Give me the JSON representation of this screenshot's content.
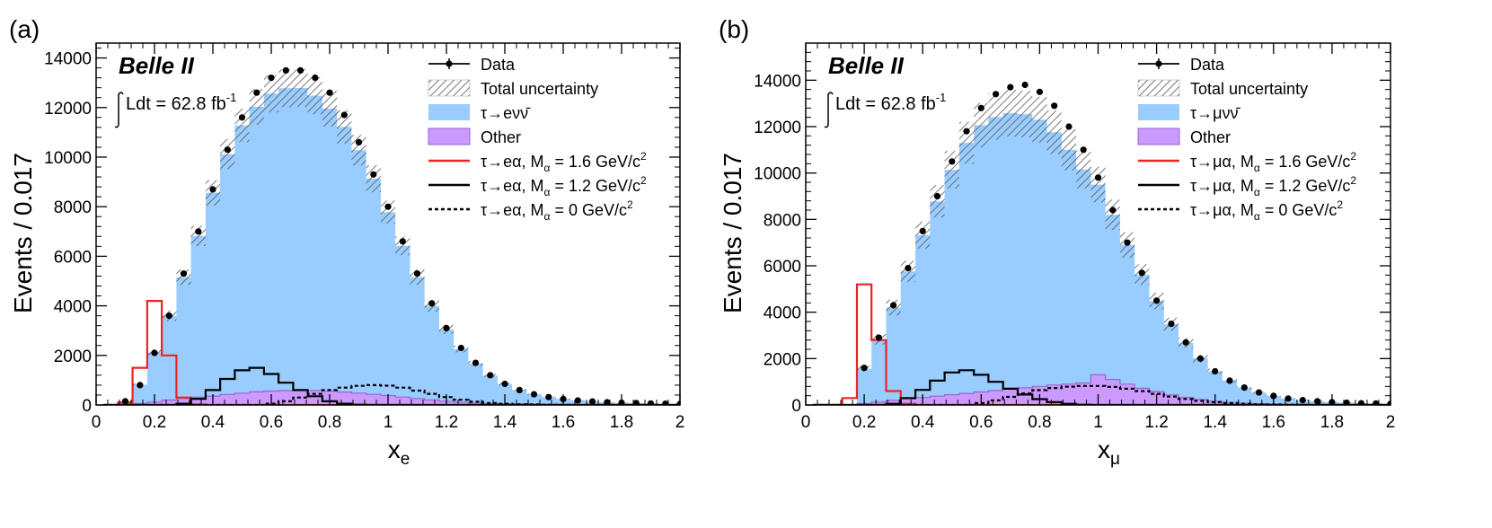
{
  "chart_data": [
    {
      "type": "histogram",
      "panel_label": "(a)",
      "experiment_label": "Belle II",
      "luminosity": {
        "prefix": "Ldt = 62.8 fb",
        "sup": "-1"
      },
      "xlabel": {
        "main": "x",
        "sub": "e"
      },
      "ylabel": "Events / 0.017",
      "xlim": [
        0,
        2
      ],
      "ylim": [
        0,
        14600
      ],
      "xticks": [
        0,
        0.2,
        0.4,
        0.6,
        0.8,
        1,
        1.2,
        1.4,
        1.6,
        1.8,
        2
      ],
      "xticklabels": [
        "0",
        "0.2",
        "0.4",
        "0.6",
        "0.8",
        "1",
        "1.2",
        "1.4",
        "1.6",
        "1.8",
        "2"
      ],
      "yticks": [
        0,
        2000,
        4000,
        6000,
        8000,
        10000,
        12000,
        14000
      ],
      "yticklabels": [
        "0",
        "2000",
        "4000",
        "6000",
        "8000",
        "10000",
        "12000",
        "14000"
      ],
      "x": [
        0.05,
        0.1,
        0.15,
        0.2,
        0.25,
        0.3,
        0.35,
        0.4,
        0.45,
        0.5,
        0.55,
        0.6,
        0.65,
        0.7,
        0.75,
        0.8,
        0.85,
        0.9,
        0.95,
        1.0,
        1.05,
        1.1,
        1.15,
        1.2,
        1.25,
        1.3,
        1.35,
        1.4,
        1.45,
        1.5,
        1.55,
        1.6,
        1.65,
        1.7,
        1.75,
        1.8,
        1.85,
        1.9,
        1.95,
        2.0
      ],
      "series": [
        {
          "name": "Data",
          "kind": "points",
          "values": [
            0,
            150,
            800,
            2100,
            3600,
            5300,
            7000,
            8700,
            10300,
            11600,
            12600,
            13200,
            13500,
            13500,
            13200,
            12600,
            11700,
            10600,
            9300,
            8000,
            6600,
            5300,
            4100,
            3100,
            2300,
            1700,
            1200,
            850,
            600,
            430,
            320,
            240,
            180,
            140,
            110,
            90,
            75,
            60,
            50,
            40
          ]
        },
        {
          "name": "Total uncertainty",
          "kind": "band",
          "fraction": 0.06
        },
        {
          "name": "τ→eνν̄",
          "kind": "stack",
          "values": [
            0,
            130,
            760,
            2000,
            3400,
            4900,
            6500,
            8200,
            9700,
            10800,
            11500,
            12000,
            12200,
            12200,
            11900,
            11400,
            10700,
            9800,
            8700,
            7400,
            6100,
            4900,
            3800,
            2900,
            2150,
            1600,
            1130,
            800,
            570,
            410,
            305,
            230,
            175,
            135,
            105,
            85,
            70,
            57,
            47,
            38
          ]
        },
        {
          "name": "Other",
          "kind": "stack",
          "values": [
            0,
            20,
            60,
            120,
            200,
            260,
            320,
            360,
            420,
            480,
            530,
            560,
            580,
            590,
            580,
            560,
            520,
            480,
            430,
            380,
            320,
            260,
            200,
            150,
            110,
            80,
            60,
            45,
            35,
            25,
            18,
            12,
            8,
            6,
            4,
            3,
            2,
            2,
            1,
            1
          ]
        },
        {
          "name": "τ→eα, M",
          "sub": "α",
          "suffix": " = 1.6 GeV/c",
          "sup": "2",
          "kind": "line",
          "style": "solid",
          "color": "#ee2222",
          "values": [
            0,
            100,
            1500,
            4200,
            2000,
            300,
            20,
            0,
            0,
            0,
            0,
            0,
            0,
            0,
            0,
            0,
            0,
            0,
            0,
            0,
            0,
            0,
            0,
            0,
            0,
            0,
            0,
            0,
            0,
            0,
            0,
            0,
            0,
            0,
            0,
            0,
            0,
            0,
            0,
            0
          ]
        },
        {
          "name": "τ→eα, M",
          "sub": "α",
          "suffix": " = 1.2 GeV/c",
          "sup": "2",
          "kind": "line",
          "style": "solid",
          "color": "#000000",
          "values": [
            0,
            0,
            0,
            0,
            0,
            50,
            250,
            600,
            1050,
            1400,
            1500,
            1250,
            900,
            600,
            350,
            150,
            50,
            10,
            0,
            0,
            0,
            0,
            0,
            0,
            0,
            0,
            0,
            0,
            0,
            0,
            0,
            0,
            0,
            0,
            0,
            0,
            0,
            0,
            0,
            0
          ]
        },
        {
          "name": "τ→eα, M",
          "sub": "α",
          "suffix": " = 0 GeV/c",
          "sup": "2",
          "kind": "line",
          "style": "dashed",
          "color": "#000000",
          "values": [
            0,
            0,
            0,
            0,
            0,
            0,
            0,
            0,
            0,
            0,
            0,
            50,
            150,
            300,
            450,
            600,
            700,
            770,
            800,
            780,
            700,
            580,
            450,
            320,
            210,
            130,
            80,
            50,
            30,
            20,
            10,
            5,
            0,
            0,
            0,
            0,
            0,
            0,
            0,
            0
          ]
        }
      ],
      "colors": {
        "signal": "#99ccff",
        "other": "#cc99ff",
        "other_line": "#9966cc",
        "band": "#555555"
      },
      "legend_position": "top-right"
    },
    {
      "type": "histogram",
      "panel_label": "(b)",
      "experiment_label": "Belle II",
      "luminosity": {
        "prefix": "Ldt = 62.8 fb",
        "sup": "-1"
      },
      "xlabel": {
        "main": "x",
        "sub": "μ"
      },
      "ylabel": "Events / 0.017",
      "xlim": [
        0,
        2
      ],
      "ylim": [
        0,
        15600
      ],
      "xticks": [
        0,
        0.2,
        0.4,
        0.6,
        0.8,
        1,
        1.2,
        1.4,
        1.6,
        1.8,
        2
      ],
      "xticklabels": [
        "0",
        "0.2",
        "0.4",
        "0.6",
        "0.8",
        "1",
        "1.2",
        "1.4",
        "1.6",
        "1.8",
        "2"
      ],
      "yticks": [
        0,
        2000,
        4000,
        6000,
        8000,
        10000,
        12000,
        14000
      ],
      "yticklabels": [
        "0",
        "2000",
        "4000",
        "6000",
        "8000",
        "10000",
        "12000",
        "14000"
      ],
      "x": [
        0.05,
        0.1,
        0.15,
        0.2,
        0.25,
        0.3,
        0.35,
        0.4,
        0.45,
        0.5,
        0.55,
        0.6,
        0.65,
        0.7,
        0.75,
        0.8,
        0.85,
        0.9,
        0.95,
        1.0,
        1.05,
        1.1,
        1.15,
        1.2,
        1.25,
        1.3,
        1.35,
        1.4,
        1.45,
        1.5,
        1.55,
        1.6,
        1.65,
        1.7,
        1.75,
        1.8,
        1.85,
        1.9,
        1.95,
        2.0
      ],
      "series": [
        {
          "name": "Data",
          "kind": "points",
          "values": [
            0,
            0,
            0,
            1600,
            2900,
            4300,
            5900,
            7500,
            9000,
            10500,
            11800,
            12800,
            13400,
            13700,
            13800,
            13500,
            12900,
            12000,
            11000,
            9800,
            8400,
            7000,
            5700,
            4500,
            3500,
            2700,
            2000,
            1450,
            1050,
            750,
            540,
            390,
            280,
            210,
            160,
            120,
            95,
            75,
            60,
            50
          ]
        },
        {
          "name": "Total uncertainty",
          "kind": "band",
          "fraction": 0.08
        },
        {
          "name": "τ→μνν̄",
          "kind": "stack",
          "values": [
            0,
            0,
            0,
            1500,
            2700,
            4000,
            5500,
            7000,
            8400,
            9700,
            10800,
            11500,
            11800,
            11900,
            11800,
            11500,
            10900,
            10100,
            9200,
            8200,
            7100,
            6000,
            4900,
            3900,
            3050,
            2350,
            1760,
            1290,
            940,
            670,
            485,
            350,
            252,
            190,
            145,
            108,
            86,
            68,
            55,
            46
          ]
        },
        {
          "name": "Other",
          "kind": "stack",
          "values": [
            0,
            0,
            0,
            60,
            130,
            200,
            260,
            320,
            380,
            440,
            500,
            560,
            620,
            680,
            740,
            800,
            860,
            900,
            950,
            1300,
            1100,
            900,
            720,
            580,
            430,
            330,
            240,
            160,
            110,
            80,
            55,
            40,
            28,
            20,
            15,
            12,
            9,
            7,
            5,
            4
          ]
        },
        {
          "name": "τ→μα, M",
          "sub": "α",
          "suffix": " = 1.6 GeV/c",
          "sup": "2",
          "kind": "line",
          "style": "solid",
          "color": "#ee2222",
          "values": [
            0,
            0,
            300,
            5200,
            2800,
            600,
            50,
            0,
            0,
            0,
            0,
            0,
            0,
            0,
            0,
            0,
            0,
            0,
            0,
            0,
            0,
            0,
            0,
            0,
            0,
            0,
            0,
            0,
            0,
            0,
            0,
            0,
            0,
            0,
            0,
            0,
            0,
            0,
            0,
            0
          ]
        },
        {
          "name": "τ→μα, M",
          "sub": "α",
          "suffix": " = 1.2 GeV/c",
          "sup": "2",
          "kind": "line",
          "style": "solid",
          "color": "#000000",
          "values": [
            0,
            0,
            0,
            0,
            0,
            50,
            300,
            650,
            1050,
            1400,
            1500,
            1300,
            1000,
            700,
            450,
            250,
            120,
            50,
            10,
            0,
            0,
            0,
            0,
            0,
            0,
            0,
            0,
            0,
            0,
            0,
            0,
            0,
            0,
            0,
            0,
            0,
            0,
            0,
            0,
            0
          ]
        },
        {
          "name": "τ→μα, M",
          "sub": "α",
          "suffix": " = 0 GeV/c",
          "sup": "2",
          "kind": "line",
          "style": "dashed",
          "color": "#000000",
          "values": [
            0,
            0,
            0,
            0,
            0,
            0,
            0,
            0,
            0,
            0,
            0,
            80,
            200,
            350,
            500,
            640,
            730,
            790,
            820,
            820,
            780,
            700,
            600,
            480,
            360,
            260,
            180,
            120,
            80,
            50,
            30,
            20,
            10,
            5,
            0,
            0,
            0,
            0,
            0,
            0
          ]
        }
      ],
      "colors": {
        "signal": "#99ccff",
        "other": "#cc99ff",
        "other_line": "#9966cc",
        "band": "#555555"
      },
      "legend_position": "top-right"
    }
  ]
}
